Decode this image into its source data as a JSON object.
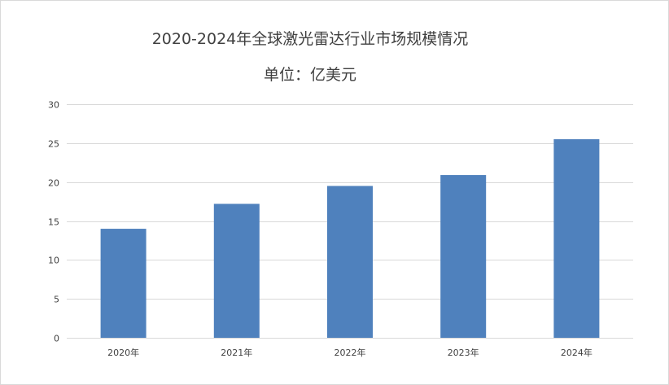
{
  "chart_data": {
    "type": "bar",
    "title": "2020-2024年全球激光雷达行业市场规模情况",
    "subtitle": "单位：亿美元",
    "categories": [
      "2020年",
      "2021年",
      "2022年",
      "2023年",
      "2024年"
    ],
    "values": [
      14.0,
      17.2,
      19.5,
      20.9,
      25.5
    ],
    "ylim": [
      0,
      30
    ],
    "yticks": [
      0,
      5,
      10,
      15,
      20,
      25,
      30
    ],
    "xlabel": "",
    "ylabel": "",
    "grid": true,
    "legend": "none",
    "bar_color": "#4F81BD"
  }
}
